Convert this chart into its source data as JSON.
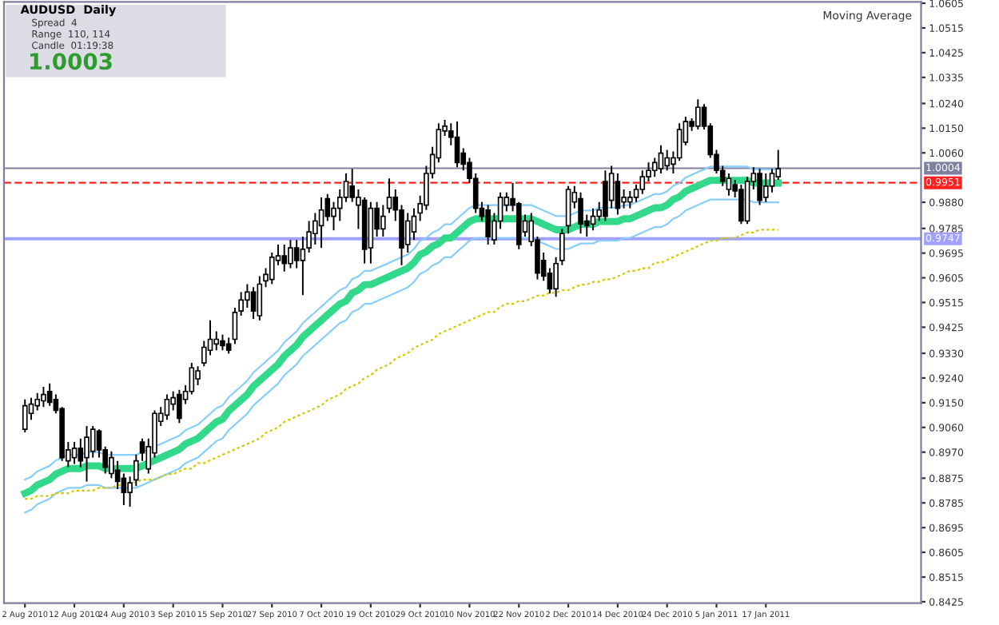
{
  "chart_data": {
    "type": "candlestick",
    "categories": [
      "2 Aug 2010",
      null,
      null,
      null,
      null,
      null,
      null,
      null,
      "12 Aug 2010",
      null,
      null,
      null,
      null,
      null,
      null,
      null,
      "24 Aug 2010",
      null,
      null,
      null,
      null,
      null,
      null,
      null,
      "3 Sep 2010",
      null,
      null,
      null,
      null,
      null,
      null,
      null,
      "15 Sep 2010",
      null,
      null,
      null,
      null,
      null,
      null,
      null,
      "27 Sep 2010",
      null,
      null,
      null,
      null,
      null,
      null,
      null,
      "7 Oct 2010",
      null,
      null,
      null,
      null,
      null,
      null,
      null,
      "19 Oct 2010",
      null,
      null,
      null,
      null,
      null,
      null,
      null,
      "29 Oct 2010",
      null,
      null,
      null,
      null,
      null,
      null,
      null,
      "10 Nov 2010",
      null,
      null,
      null,
      null,
      null,
      null,
      null,
      "22 Nov 2010",
      null,
      null,
      null,
      null,
      null,
      null,
      null,
      "2 Dec 2010",
      null,
      null,
      null,
      null,
      null,
      null,
      null,
      "14 Dec 2010",
      null,
      null,
      null,
      null,
      null,
      null,
      null,
      "24 Dec 2010",
      null,
      null,
      null,
      null,
      null,
      null,
      null,
      "5 Jan 2011",
      null,
      null,
      null,
      null,
      null,
      null,
      null,
      "17 Jan 2011",
      null,
      null
    ],
    "ohlc": [
      [
        0.9053,
        0.9162,
        0.9042,
        0.9139
      ],
      [
        0.9111,
        0.9168,
        0.9088,
        0.9145
      ],
      [
        0.9139,
        0.9185,
        0.9122,
        0.9162
      ],
      [
        0.9157,
        0.9208,
        0.9134,
        0.918
      ],
      [
        0.9191,
        0.922,
        0.9139,
        0.9151
      ],
      [
        0.9162,
        0.918,
        0.9111,
        0.9122
      ],
      [
        0.9128,
        0.9134,
        0.8938,
        0.895
      ],
      [
        0.8938,
        0.9007,
        0.8915,
        0.8978
      ],
      [
        0.895,
        0.9007,
        0.8927,
        0.8984
      ],
      [
        0.8984,
        0.9019,
        0.8915,
        0.8938
      ],
      [
        0.895,
        0.9065,
        0.8863,
        0.9024
      ],
      [
        0.8973,
        0.9065,
        0.895,
        0.9053
      ],
      [
        0.9047,
        0.9053,
        0.895,
        0.8978
      ],
      [
        0.8978,
        0.899,
        0.8892,
        0.8915
      ],
      [
        0.8892,
        0.8973,
        0.8875,
        0.895
      ],
      [
        0.8904,
        0.8938,
        0.8835,
        0.8863
      ],
      [
        0.8875,
        0.8892,
        0.8777,
        0.8823
      ],
      [
        0.8823,
        0.8881,
        0.8771,
        0.8858
      ],
      [
        0.8869,
        0.8961,
        0.8846,
        0.8938
      ],
      [
        0.9007,
        0.9019,
        0.8938,
        0.8967
      ],
      [
        0.8909,
        0.9019,
        0.8892,
        0.899
      ],
      [
        0.8967,
        0.9122,
        0.895,
        0.9111
      ],
      [
        0.9082,
        0.9134,
        0.9065,
        0.9111
      ],
      [
        0.9105,
        0.918,
        0.9088,
        0.9162
      ],
      [
        0.9145,
        0.9191,
        0.9122,
        0.9168
      ],
      [
        0.918,
        0.9197,
        0.9076,
        0.9093
      ],
      [
        0.9162,
        0.9214,
        0.9145,
        0.9191
      ],
      [
        0.9191,
        0.9295,
        0.918,
        0.9277
      ],
      [
        0.9237,
        0.9283,
        0.9214,
        0.9266
      ],
      [
        0.9295,
        0.9375,
        0.9283,
        0.9352
      ],
      [
        0.9341,
        0.945,
        0.9323,
        0.9381
      ],
      [
        0.9364,
        0.941,
        0.9341,
        0.9381
      ],
      [
        0.9375,
        0.9398,
        0.9341,
        0.9358
      ],
      [
        0.9364,
        0.9387,
        0.9329,
        0.9341
      ],
      [
        0.9381,
        0.9496,
        0.9364,
        0.9479
      ],
      [
        0.9484,
        0.9553,
        0.9467,
        0.9524
      ],
      [
        0.9524,
        0.9582,
        0.9496,
        0.9553
      ],
      [
        0.9553,
        0.9571,
        0.9455,
        0.9484
      ],
      [
        0.9467,
        0.9611,
        0.945,
        0.9582
      ],
      [
        0.9594,
        0.964,
        0.9571,
        0.9617
      ],
      [
        0.9599,
        0.9697,
        0.9582,
        0.968
      ],
      [
        0.9668,
        0.9726,
        0.9651,
        0.9685
      ],
      [
        0.9685,
        0.9726,
        0.9628,
        0.9657
      ],
      [
        0.9657,
        0.9743,
        0.964,
        0.9714
      ],
      [
        0.9714,
        0.9743,
        0.964,
        0.9668
      ],
      [
        0.9668,
        0.9755,
        0.9542,
        0.9709
      ],
      [
        0.9714,
        0.9812,
        0.9697,
        0.9772
      ],
      [
        0.9766,
        0.9841,
        0.9726,
        0.9812
      ],
      [
        0.9795,
        0.9898,
        0.9714,
        0.9852
      ],
      [
        0.9893,
        0.991,
        0.9812,
        0.9829
      ],
      [
        0.9829,
        0.9881,
        0.9778,
        0.9858
      ],
      [
        0.9858,
        0.9927,
        0.9812,
        0.9898
      ],
      [
        0.9898,
        0.9985,
        0.9881,
        0.9956
      ],
      [
        0.9939,
        1.0002,
        0.9881,
        0.9898
      ],
      [
        0.987,
        0.9927,
        0.9783,
        0.9898
      ],
      [
        0.9887,
        0.9898,
        0.9657,
        0.9709
      ],
      [
        0.9714,
        0.9881,
        0.9657,
        0.9858
      ],
      [
        0.9858,
        0.9881,
        0.9755,
        0.9783
      ],
      [
        0.9783,
        0.987,
        0.9755,
        0.9829
      ],
      [
        0.9858,
        0.9967,
        0.9841,
        0.9898
      ],
      [
        0.9898,
        0.9927,
        0.9812,
        0.9852
      ],
      [
        0.9852,
        0.987,
        0.9651,
        0.9714
      ],
      [
        0.9726,
        0.9841,
        0.9697,
        0.9812
      ],
      [
        0.9772,
        0.9858,
        0.9743,
        0.9829
      ],
      [
        0.9841,
        0.9904,
        0.9812,
        0.9875
      ],
      [
        0.987,
        1.0013,
        0.9852,
        0.9985
      ],
      [
        0.9985,
        1.0082,
        0.9967,
        1.0054
      ],
      [
        1.0042,
        1.0168,
        1.0025,
        1.0145
      ],
      [
        1.014,
        1.018,
        1.0122,
        1.0157
      ],
      [
        1.014,
        1.0168,
        1.0088,
        1.0117
      ],
      [
        1.0117,
        1.0174,
        1.0008,
        1.0025
      ],
      [
        1.0059,
        1.0077,
        0.9996,
        1.0019
      ],
      [
        1.0025,
        1.0042,
        0.995,
        0.9967
      ],
      [
        0.9967,
        0.9985,
        0.9841,
        0.9858
      ],
      [
        0.9858,
        0.9881,
        0.9812,
        0.9829
      ],
      [
        0.9852,
        0.987,
        0.9726,
        0.9755
      ],
      [
        0.9743,
        0.9841,
        0.9726,
        0.9812
      ],
      [
        0.9812,
        0.9916,
        0.9783,
        0.9898
      ],
      [
        0.987,
        0.9916,
        0.9847,
        0.9898
      ],
      [
        0.9893,
        0.995,
        0.9847,
        0.987
      ],
      [
        0.9875,
        0.9881,
        0.9709,
        0.9726
      ],
      [
        0.9772,
        0.9835,
        0.9755,
        0.9812
      ],
      [
        0.9737,
        0.9841,
        0.972,
        0.9812
      ],
      [
        0.9743,
        0.9755,
        0.9599,
        0.9622
      ],
      [
        0.9668,
        0.9697,
        0.9594,
        0.9611
      ],
      [
        0.9622,
        0.964,
        0.9548,
        0.9565
      ],
      [
        0.9565,
        0.968,
        0.9536,
        0.9657
      ],
      [
        0.9668,
        0.9783,
        0.9651,
        0.9766
      ],
      [
        0.9795,
        0.9939,
        0.9766,
        0.9927
      ],
      [
        0.9881,
        0.9939,
        0.9858,
        0.9916
      ],
      [
        0.9893,
        0.9916,
        0.9766,
        0.9801
      ],
      [
        0.9812,
        0.9835,
        0.9755,
        0.9795
      ],
      [
        0.9801,
        0.9858,
        0.9778,
        0.9829
      ],
      [
        0.9829,
        0.9881,
        0.9812,
        0.9852
      ],
      [
        0.9956,
        0.9996,
        0.9812,
        0.9829
      ],
      [
        0.9887,
        1.0013,
        0.9858,
        0.9985
      ],
      [
        0.9956,
        0.9985,
        0.9835,
        0.9858
      ],
      [
        0.9881,
        0.9927,
        0.9858,
        0.9898
      ],
      [
        0.9881,
        0.9921,
        0.9858,
        0.9898
      ],
      [
        0.9898,
        0.9944,
        0.9881,
        0.9927
      ],
      [
        0.9927,
        0.9996,
        0.991,
        0.9973
      ],
      [
        0.9973,
        1.0025,
        0.9956,
        0.9996
      ],
      [
        0.9996,
        1.0042,
        0.9973,
        1.0025
      ],
      [
        1.0002,
        1.0088,
        0.9985,
        1.0059
      ],
      [
        1.0013,
        1.0071,
        0.9996,
        1.0042
      ],
      [
        1.0019,
        1.0065,
        0.9985,
        1.0042
      ],
      [
        1.0042,
        1.0168,
        1.0031,
        1.0145
      ],
      [
        1.0099,
        1.0192,
        1.0088,
        1.0174
      ],
      [
        1.0174,
        1.0186,
        1.014,
        1.0157
      ],
      [
        1.0157,
        1.0255,
        1.0145,
        1.0226
      ],
      [
        1.0226,
        1.0238,
        1.0145,
        1.0157
      ],
      [
        1.0157,
        1.0168,
        1.0042,
        1.0054
      ],
      [
        1.0054,
        1.0071,
        0.9985,
        0.9996
      ],
      [
        0.9996,
        1.0013,
        0.9939,
        0.9956
      ],
      [
        0.9927,
        0.9985,
        0.9904,
        0.9967
      ],
      [
        0.9944,
        0.9962,
        0.9898,
        0.9921
      ],
      [
        0.9927,
        0.9944,
        0.9801,
        0.9812
      ],
      [
        0.9812,
        0.9973,
        0.9801,
        0.9956
      ],
      [
        0.9956,
        1.0008,
        0.9927,
        0.9985
      ],
      [
        0.9985,
        1.0002,
        0.987,
        0.9887
      ],
      [
        0.9898,
        0.9985,
        0.9881,
        0.9939
      ],
      [
        0.9939,
        1.0002,
        0.9916,
        0.9985
      ],
      [
        0.9973,
        1.0071,
        0.9962,
        1.0002
      ]
    ],
    "series": [
      {
        "type": "line",
        "color": "#33d98a",
        "values": [
          0.882,
          0.883,
          0.885,
          0.886,
          0.887,
          0.889,
          0.89,
          0.891,
          0.891,
          0.891,
          0.892,
          0.892,
          0.892,
          0.891,
          0.891,
          0.891,
          0.891,
          0.891,
          0.891,
          0.892,
          0.893,
          0.894,
          0.895,
          0.896,
          0.897,
          0.898,
          0.9,
          0.901,
          0.902,
          0.904,
          0.906,
          0.908,
          0.909,
          0.912,
          0.914,
          0.916,
          0.918,
          0.921,
          0.923,
          0.925,
          0.927,
          0.929,
          0.932,
          0.934,
          0.936,
          0.939,
          0.941,
          0.943,
          0.945,
          0.947,
          0.949,
          0.951,
          0.952,
          0.955,
          0.956,
          0.958,
          0.958,
          0.959,
          0.96,
          0.961,
          0.962,
          0.963,
          0.964,
          0.966,
          0.969,
          0.97,
          0.972,
          0.973,
          0.975,
          0.975,
          0.977,
          0.979,
          0.981,
          0.982,
          0.982,
          0.982,
          0.982,
          0.982,
          0.982,
          0.982,
          0.982,
          0.982,
          0.982,
          0.981,
          0.98,
          0.979,
          0.978,
          0.978,
          0.978,
          0.979,
          0.98,
          0.98,
          0.98,
          0.981,
          0.981,
          0.981,
          0.981,
          0.982,
          0.982,
          0.983,
          0.984,
          0.985,
          0.986,
          0.986,
          0.987,
          0.989,
          0.99,
          0.992,
          0.993,
          0.994,
          0.995,
          0.996,
          0.996,
          0.996,
          0.996,
          0.996,
          0.996,
          0.996,
          0.995,
          0.995,
          0.995,
          0.995,
          0.995
        ]
      },
      {
        "type": "line",
        "color": "#87cefa",
        "values": [
          0.887,
          0.888,
          0.89,
          0.891,
          0.892,
          0.894,
          0.895,
          0.896,
          0.896,
          0.896,
          0.897,
          0.897,
          0.897,
          0.896,
          0.896,
          0.896,
          0.896,
          0.896,
          0.896,
          0.897,
          0.898,
          0.899,
          0.9,
          0.901,
          0.902,
          0.903,
          0.905,
          0.906,
          0.907,
          0.909,
          0.911,
          0.913,
          0.914,
          0.917,
          0.919,
          0.921,
          0.923,
          0.926,
          0.928,
          0.93,
          0.932,
          0.934,
          0.937,
          0.939,
          0.941,
          0.944,
          0.946,
          0.948,
          0.95,
          0.952,
          0.954,
          0.956,
          0.957,
          0.96,
          0.961,
          0.963,
          0.963,
          0.964,
          0.965,
          0.966,
          0.967,
          0.968,
          0.969,
          0.971,
          0.974,
          0.975,
          0.977,
          0.978,
          0.98,
          0.98,
          0.982,
          0.984,
          0.986,
          0.987,
          0.987,
          0.987,
          0.987,
          0.987,
          0.987,
          0.987,
          0.987,
          0.987,
          0.987,
          0.986,
          0.985,
          0.984,
          0.983,
          0.983,
          0.983,
          0.984,
          0.985,
          0.985,
          0.985,
          0.986,
          0.986,
          0.986,
          0.986,
          0.987,
          0.987,
          0.988,
          0.989,
          0.99,
          0.991,
          0.991,
          0.992,
          0.994,
          0.995,
          0.997,
          0.998,
          0.999,
          1.0,
          1.001,
          1.001,
          1.001,
          1.001,
          1.001,
          1.001,
          1.001,
          1.0,
          1.0,
          1.0,
          1.0,
          1.0
        ]
      },
      {
        "type": "line",
        "color": "#87cefa",
        "values": [
          0.875,
          0.876,
          0.878,
          0.879,
          0.88,
          0.882,
          0.883,
          0.884,
          0.884,
          0.884,
          0.885,
          0.885,
          0.885,
          0.884,
          0.884,
          0.884,
          0.884,
          0.884,
          0.884,
          0.885,
          0.886,
          0.887,
          0.888,
          0.889,
          0.89,
          0.891,
          0.893,
          0.894,
          0.895,
          0.897,
          0.899,
          0.901,
          0.902,
          0.905,
          0.907,
          0.909,
          0.911,
          0.914,
          0.916,
          0.918,
          0.92,
          0.922,
          0.925,
          0.927,
          0.929,
          0.932,
          0.934,
          0.936,
          0.938,
          0.94,
          0.942,
          0.944,
          0.945,
          0.948,
          0.949,
          0.951,
          0.951,
          0.952,
          0.953,
          0.954,
          0.955,
          0.956,
          0.957,
          0.959,
          0.962,
          0.963,
          0.965,
          0.966,
          0.968,
          0.968,
          0.97,
          0.972,
          0.974,
          0.975,
          0.975,
          0.975,
          0.975,
          0.975,
          0.975,
          0.975,
          0.975,
          0.975,
          0.975,
          0.974,
          0.973,
          0.972,
          0.971,
          0.971,
          0.971,
          0.972,
          0.973,
          0.973,
          0.973,
          0.974,
          0.974,
          0.974,
          0.974,
          0.975,
          0.975,
          0.976,
          0.977,
          0.978,
          0.979,
          0.979,
          0.98,
          0.982,
          0.983,
          0.985,
          0.986,
          0.987,
          0.988,
          0.989,
          0.989,
          0.989,
          0.989,
          0.989,
          0.989,
          0.989,
          0.988,
          0.988,
          0.988,
          0.988,
          0.988
        ]
      },
      {
        "type": "line",
        "color": "#d4c800",
        "line_style": "dotted",
        "values": [
          0.88,
          0.88,
          0.881,
          0.881,
          0.881,
          0.882,
          0.882,
          0.882,
          0.883,
          0.883,
          0.883,
          0.883,
          0.884,
          0.884,
          0.884,
          0.885,
          0.885,
          0.886,
          0.886,
          0.887,
          0.887,
          0.887,
          0.888,
          0.889,
          0.889,
          0.89,
          0.891,
          0.891,
          0.893,
          0.893,
          0.894,
          0.895,
          0.896,
          0.897,
          0.898,
          0.899,
          0.9,
          0.901,
          0.902,
          0.904,
          0.905,
          0.906,
          0.908,
          0.909,
          0.91,
          0.911,
          0.912,
          0.913,
          0.914,
          0.916,
          0.917,
          0.918,
          0.92,
          0.921,
          0.922,
          0.924,
          0.925,
          0.927,
          0.928,
          0.929,
          0.931,
          0.932,
          0.933,
          0.935,
          0.936,
          0.937,
          0.938,
          0.94,
          0.941,
          0.942,
          0.943,
          0.944,
          0.945,
          0.946,
          0.947,
          0.948,
          0.948,
          0.95,
          0.951,
          0.951,
          0.952,
          0.952,
          0.953,
          0.954,
          0.954,
          0.955,
          0.955,
          0.956,
          0.956,
          0.957,
          0.958,
          0.958,
          0.959,
          0.959,
          0.96,
          0.96,
          0.961,
          0.962,
          0.963,
          0.963,
          0.964,
          0.964,
          0.966,
          0.966,
          0.967,
          0.968,
          0.969,
          0.97,
          0.971,
          0.972,
          0.973,
          0.974,
          0.974,
          0.975,
          0.975,
          0.975,
          0.976,
          0.977,
          0.977,
          0.978,
          0.978,
          0.978,
          0.978
        ]
      }
    ],
    "ylim": [
      0.842,
      1.061
    ],
    "yticks": [
      {
        "value": 1.0605,
        "label": "1.0605"
      },
      {
        "value": 1.0515,
        "label": "1.0515"
      },
      {
        "value": 1.0425,
        "label": "1.0425"
      },
      {
        "value": 1.0335,
        "label": "1.0335"
      },
      {
        "value": 1.024,
        "label": "1.0240"
      },
      {
        "value": 1.015,
        "label": "1.0150"
      },
      {
        "value": 1.006,
        "label": "1.0060"
      },
      {
        "value": 0.988,
        "label": "0.9880"
      },
      {
        "value": 0.9785,
        "label": "0.9785"
      },
      {
        "value": 0.9695,
        "label": "0.9695"
      },
      {
        "value": 0.9605,
        "label": "0.9605"
      },
      {
        "value": 0.9515,
        "label": "0.9515"
      },
      {
        "value": 0.9425,
        "label": "0.9425"
      },
      {
        "value": 0.933,
        "label": "0.9330"
      },
      {
        "value": 0.924,
        "label": "0.9240"
      },
      {
        "value": 0.915,
        "label": "0.9150"
      },
      {
        "value": 0.906,
        "label": "0.9060"
      },
      {
        "value": 0.897,
        "label": "0.8970"
      },
      {
        "value": 0.8875,
        "label": "0.8875"
      },
      {
        "value": 0.8785,
        "label": "0.8785"
      },
      {
        "value": 0.8695,
        "label": "0.8695"
      },
      {
        "value": 0.8605,
        "label": "0.8605"
      },
      {
        "value": 0.8515,
        "label": "0.8515"
      },
      {
        "value": 0.8425,
        "label": "0.8425"
      }
    ],
    "ref_lines": [
      {
        "axis": "y",
        "value": 1.0004,
        "label": "1.0004",
        "color": "#7f7f9f",
        "line_style": "solid"
      },
      {
        "axis": "y",
        "value": 0.9951,
        "label": "0.9951",
        "color": "#ff2020",
        "line_style": "dashed"
      },
      {
        "axis": "y",
        "value": 0.9747,
        "label": "0.9747",
        "color": "#a0a0ff",
        "line_style": "solid"
      }
    ],
    "annotations": [
      "AUDUSD  Daily",
      "Spread  4",
      "Range  110, 114",
      "Candle  01:19:38",
      "1.0003",
      "Moving Average"
    ],
    "grid": false,
    "legend": false,
    "marker": "none"
  }
}
